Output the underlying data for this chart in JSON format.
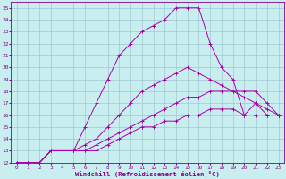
{
  "xlabel": "Windchill (Refroidissement éolien,°C)",
  "xlim": [
    -0.5,
    23.5
  ],
  "ylim": [
    12,
    25.5
  ],
  "xticks": [
    0,
    1,
    2,
    3,
    4,
    5,
    6,
    7,
    8,
    9,
    10,
    11,
    12,
    13,
    14,
    15,
    16,
    17,
    18,
    19,
    20,
    21,
    22,
    23
  ],
  "yticks": [
    12,
    13,
    14,
    15,
    16,
    17,
    18,
    19,
    20,
    21,
    22,
    23,
    24,
    25
  ],
  "background_color": "#c8eef0",
  "grid_color": "#9fc8d0",
  "line_color": "#aa00aa",
  "lines": [
    {
      "x": [
        0,
        1,
        2,
        3,
        4,
        5,
        6,
        7,
        8,
        9,
        10,
        11,
        12,
        13,
        14,
        15,
        16,
        17,
        18,
        19,
        20,
        21,
        22,
        23
      ],
      "y": [
        12,
        12,
        12,
        13,
        13,
        13,
        15,
        17,
        19,
        21,
        22,
        23,
        23.5,
        24,
        25,
        25,
        25,
        22,
        20,
        19,
        16,
        17,
        16,
        16
      ]
    },
    {
      "x": [
        0,
        1,
        2,
        3,
        4,
        5,
        6,
        7,
        8,
        9,
        10,
        11,
        12,
        13,
        14,
        15,
        16,
        17,
        18,
        19,
        20,
        21,
        22,
        23
      ],
      "y": [
        12,
        12,
        12,
        13,
        13,
        13,
        13.5,
        14,
        15,
        16,
        17,
        18,
        18.5,
        19,
        19.5,
        20,
        19.5,
        19,
        18.5,
        18,
        18,
        18,
        17,
        16
      ]
    },
    {
      "x": [
        0,
        1,
        2,
        3,
        4,
        5,
        6,
        7,
        8,
        9,
        10,
        11,
        12,
        13,
        14,
        15,
        16,
        17,
        18,
        19,
        20,
        21,
        22,
        23
      ],
      "y": [
        12,
        12,
        12,
        13,
        13,
        13,
        13,
        13.5,
        14,
        14.5,
        15,
        15.5,
        16,
        16.5,
        17,
        17.5,
        17.5,
        18,
        18,
        18,
        17.5,
        17,
        16.5,
        16
      ]
    },
    {
      "x": [
        0,
        1,
        2,
        3,
        4,
        5,
        6,
        7,
        8,
        9,
        10,
        11,
        12,
        13,
        14,
        15,
        16,
        17,
        18,
        19,
        20,
        21,
        22,
        23
      ],
      "y": [
        12,
        12,
        12,
        13,
        13,
        13,
        13,
        13,
        13.5,
        14,
        14.5,
        15,
        15,
        15.5,
        15.5,
        16,
        16,
        16.5,
        16.5,
        16.5,
        16,
        16,
        16,
        16
      ]
    }
  ]
}
